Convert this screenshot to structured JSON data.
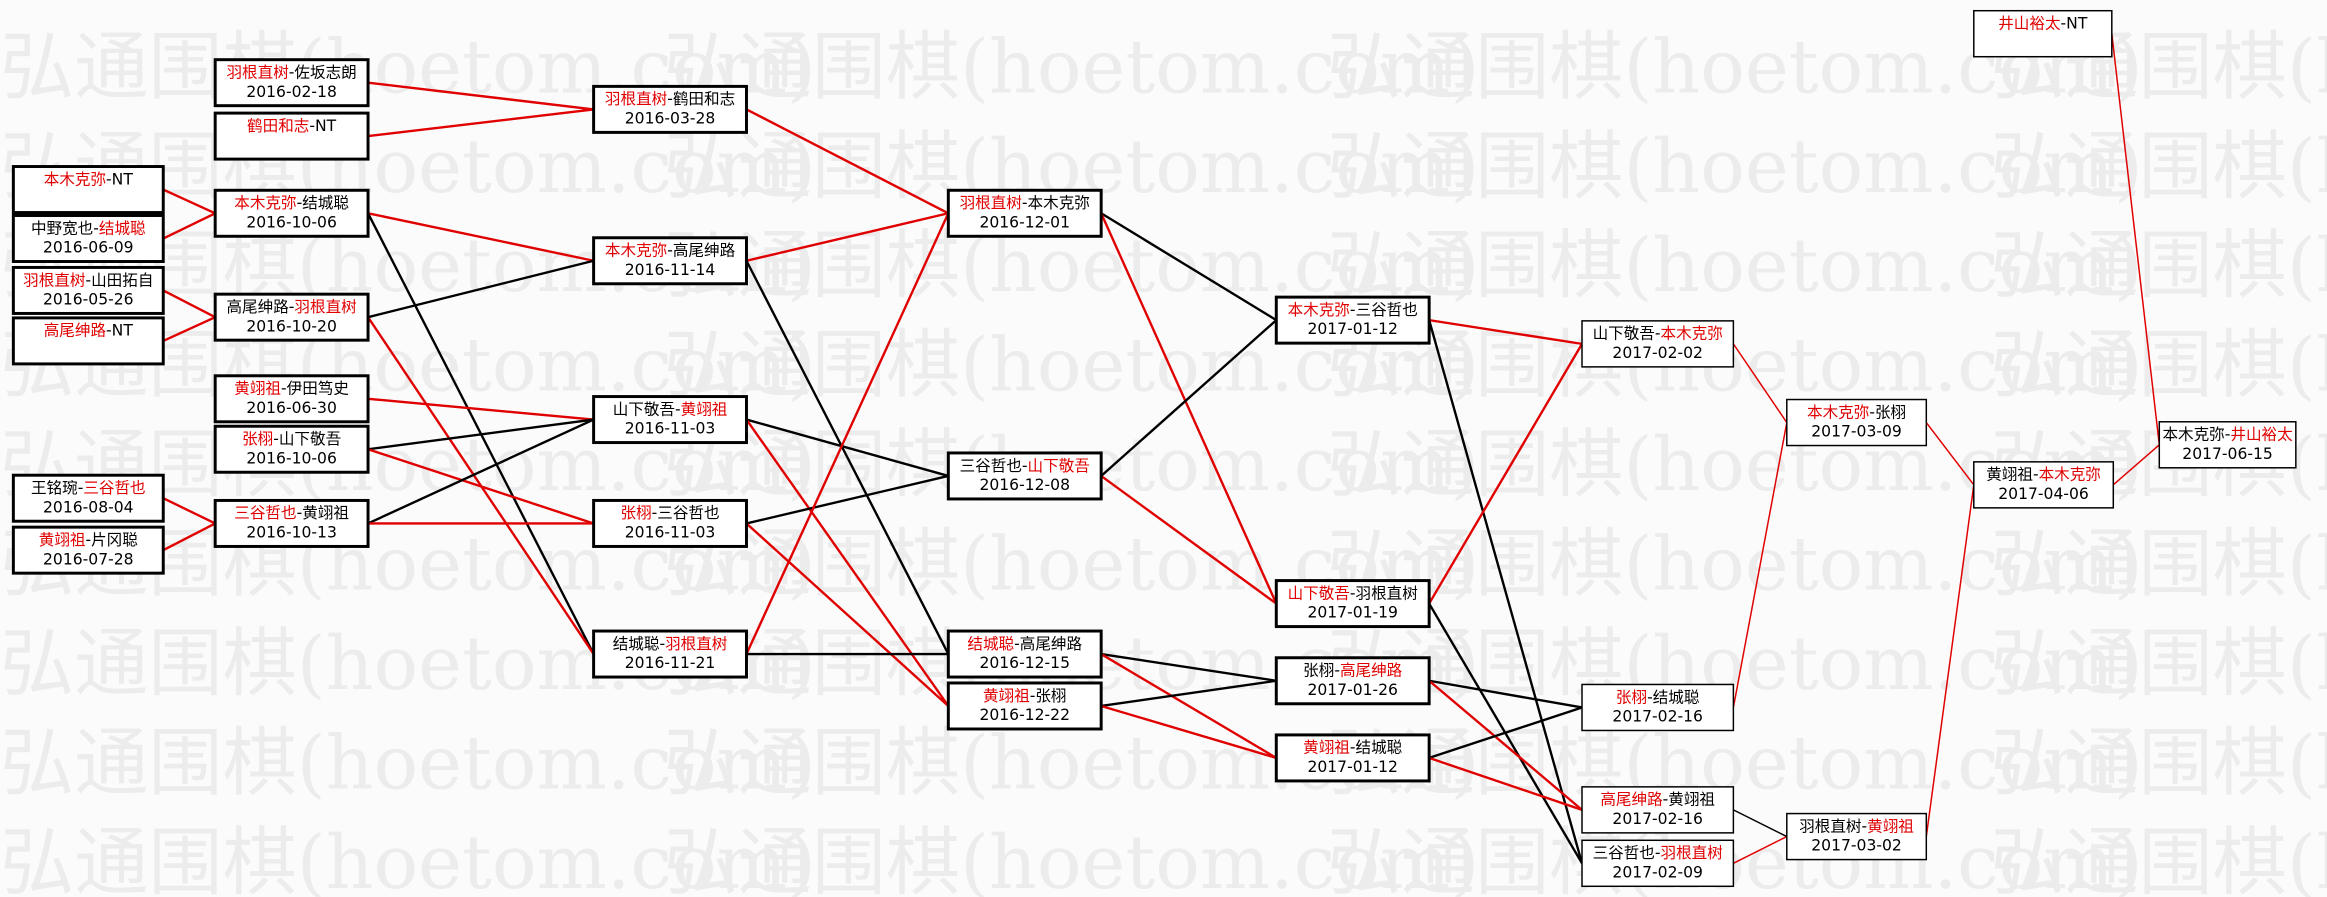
{
  "watermark": "弘通围棋(hoetom.com)",
  "colors": {
    "winner": "#e00000",
    "loser": "#000000",
    "border": "#000000",
    "background": "#fbfbfb"
  },
  "matches": [
    {
      "players": [
        "本木克弥",
        "NT"
      ],
      "winner": 0,
      "date": ""
    },
    {
      "players": [
        "中野宽也",
        "结城聪"
      ],
      "winner": 1,
      "date": "2016-06-09"
    },
    {
      "players": [
        "羽根直树",
        "山田拓自"
      ],
      "winner": 0,
      "date": "2016-05-26"
    },
    {
      "players": [
        "高尾绅路",
        "NT"
      ],
      "winner": 0,
      "date": ""
    },
    {
      "players": [
        "王铭琬",
        "三谷哲也"
      ],
      "winner": 1,
      "date": "2016-08-04"
    },
    {
      "players": [
        "黄翊祖",
        "片冈聪"
      ],
      "winner": 0,
      "date": "2016-07-28"
    },
    {
      "players": [
        "羽根直树",
        "佐坂志朗"
      ],
      "winner": 0,
      "date": "2016-02-18"
    },
    {
      "players": [
        "鹤田和志",
        "NT"
      ],
      "winner": 0,
      "date": ""
    },
    {
      "players": [
        "本木克弥",
        "结城聪"
      ],
      "winner": 0,
      "date": "2016-10-06"
    },
    {
      "players": [
        "高尾绅路",
        "羽根直树"
      ],
      "winner": 1,
      "date": "2016-10-20"
    },
    {
      "players": [
        "黄翊祖",
        "伊田笃史"
      ],
      "winner": 0,
      "date": "2016-06-30"
    },
    {
      "players": [
        "张栩",
        "山下敬吾"
      ],
      "winner": 0,
      "date": "2016-10-06"
    },
    {
      "players": [
        "三谷哲也",
        "黄翊祖"
      ],
      "winner": 0,
      "date": "2016-10-13"
    },
    {
      "players": [
        "羽根直树",
        "鹤田和志"
      ],
      "winner": 0,
      "date": "2016-03-28"
    },
    {
      "players": [
        "本木克弥",
        "高尾绅路"
      ],
      "winner": 0,
      "date": "2016-11-14"
    },
    {
      "players": [
        "山下敬吾",
        "黄翊祖"
      ],
      "winner": 1,
      "date": "2016-11-03"
    },
    {
      "players": [
        "张栩",
        "三谷哲也"
      ],
      "winner": 0,
      "date": "2016-11-03"
    },
    {
      "players": [
        "结城聪",
        "羽根直树"
      ],
      "winner": 1,
      "date": "2016-11-21"
    },
    {
      "players": [
        "羽根直树",
        "本木克弥"
      ],
      "winner": 0,
      "date": "2016-12-01"
    },
    {
      "players": [
        "三谷哲也",
        "山下敬吾"
      ],
      "winner": 1,
      "date": "2016-12-08"
    },
    {
      "players": [
        "结城聪",
        "高尾绅路"
      ],
      "winner": 0,
      "date": "2016-12-15"
    },
    {
      "players": [
        "黄翊祖",
        "张栩"
      ],
      "winner": 0,
      "date": "2016-12-22"
    },
    {
      "players": [
        "本木克弥",
        "三谷哲也"
      ],
      "winner": 0,
      "date": "2017-01-12"
    },
    {
      "players": [
        "山下敬吾",
        "羽根直树"
      ],
      "winner": 0,
      "date": "2017-01-19"
    },
    {
      "players": [
        "张栩",
        "高尾绅路"
      ],
      "winner": 1,
      "date": "2017-01-26"
    },
    {
      "players": [
        "黄翊祖",
        "结城聪"
      ],
      "winner": 0,
      "date": "2017-01-12"
    },
    {
      "players": [
        "山下敬吾",
        "本木克弥"
      ],
      "winner": 1,
      "date": "2017-02-02"
    },
    {
      "players": [
        "张栩",
        "结城聪"
      ],
      "winner": 0,
      "date": "2017-02-16"
    },
    {
      "players": [
        "高尾绅路",
        "黄翊祖"
      ],
      "winner": 0,
      "date": "2017-02-16"
    },
    {
      "players": [
        "三谷哲也",
        "羽根直树"
      ],
      "winner": 1,
      "date": "2017-02-09"
    },
    {
      "players": [
        "本木克弥",
        "张栩"
      ],
      "winner": 0,
      "date": "2017-03-09"
    },
    {
      "players": [
        "羽根直树",
        "黄翊祖"
      ],
      "winner": 1,
      "date": "2017-03-02"
    },
    {
      "players": [
        "黄翊祖",
        "本木克弥"
      ],
      "winner": 1,
      "date": "2017-04-06"
    },
    {
      "players": [
        "本木克弥",
        "井山裕太"
      ],
      "winner": 1,
      "date": "2017-06-15"
    },
    {
      "players": [
        "井山裕太",
        "NT"
      ],
      "winner": 0,
      "date": ""
    }
  ],
  "advances": [
    {
      "from": 0,
      "to": 8,
      "as": "winner"
    },
    {
      "from": 1,
      "to": 8,
      "as": "winner"
    },
    {
      "from": 2,
      "to": 9,
      "as": "winner"
    },
    {
      "from": 3,
      "to": 9,
      "as": "winner"
    },
    {
      "from": 4,
      "to": 12,
      "as": "winner"
    },
    {
      "from": 5,
      "to": 12,
      "as": "winner"
    },
    {
      "from": 6,
      "to": 13,
      "as": "winner"
    },
    {
      "from": 7,
      "to": 13,
      "as": "winner"
    },
    {
      "from": 8,
      "to": 14,
      "as": "winner"
    },
    {
      "from": 8,
      "to": 17,
      "as": "loser"
    },
    {
      "from": 9,
      "to": 14,
      "as": "loser"
    },
    {
      "from": 9,
      "to": 17,
      "as": "winner"
    },
    {
      "from": 10,
      "to": 15,
      "as": "winner"
    },
    {
      "from": 11,
      "to": 15,
      "as": "loser"
    },
    {
      "from": 11,
      "to": 16,
      "as": "winner"
    },
    {
      "from": 12,
      "to": 15,
      "as": "loser"
    },
    {
      "from": 12,
      "to": 16,
      "as": "winner"
    },
    {
      "from": 13,
      "to": 18,
      "as": "winner"
    },
    {
      "from": 14,
      "to": 18,
      "as": "winner"
    },
    {
      "from": 14,
      "to": 20,
      "as": "loser"
    },
    {
      "from": 15,
      "to": 19,
      "as": "loser"
    },
    {
      "from": 15,
      "to": 21,
      "as": "winner"
    },
    {
      "from": 16,
      "to": 19,
      "as": "loser"
    },
    {
      "from": 16,
      "to": 21,
      "as": "winner"
    },
    {
      "from": 17,
      "to": 18,
      "as": "winner"
    },
    {
      "from": 17,
      "to": 20,
      "as": "loser"
    },
    {
      "from": 18,
      "to": 22,
      "as": "loser"
    },
    {
      "from": 18,
      "to": 23,
      "as": "winner"
    },
    {
      "from": 19,
      "to": 22,
      "as": "loser"
    },
    {
      "from": 19,
      "to": 23,
      "as": "winner"
    },
    {
      "from": 20,
      "to": 24,
      "as": "loser"
    },
    {
      "from": 20,
      "to": 25,
      "as": "winner"
    },
    {
      "from": 21,
      "to": 24,
      "as": "loser"
    },
    {
      "from": 21,
      "to": 25,
      "as": "winner"
    },
    {
      "from": 22,
      "to": 26,
      "as": "winner"
    },
    {
      "from": 22,
      "to": 29,
      "as": "loser"
    },
    {
      "from": 23,
      "to": 26,
      "as": "winner"
    },
    {
      "from": 23,
      "to": 29,
      "as": "loser"
    },
    {
      "from": 24,
      "to": 27,
      "as": "loser"
    },
    {
      "from": 24,
      "to": 28,
      "as": "winner"
    },
    {
      "from": 25,
      "to": 27,
      "as": "loser"
    },
    {
      "from": 25,
      "to": 28,
      "as": "winner"
    },
    {
      "from": 26,
      "to": 30,
      "as": "winner"
    },
    {
      "from": 27,
      "to": 30,
      "as": "winner"
    },
    {
      "from": 28,
      "to": 31,
      "as": "loser"
    },
    {
      "from": 29,
      "to": 31,
      "as": "winner"
    },
    {
      "from": 30,
      "to": 32,
      "as": "winner"
    },
    {
      "from": 31,
      "to": 32,
      "as": "winner"
    },
    {
      "from": 32,
      "to": 33,
      "as": "winner"
    },
    {
      "from": 34,
      "to": 33,
      "as": "winner"
    }
  ]
}
